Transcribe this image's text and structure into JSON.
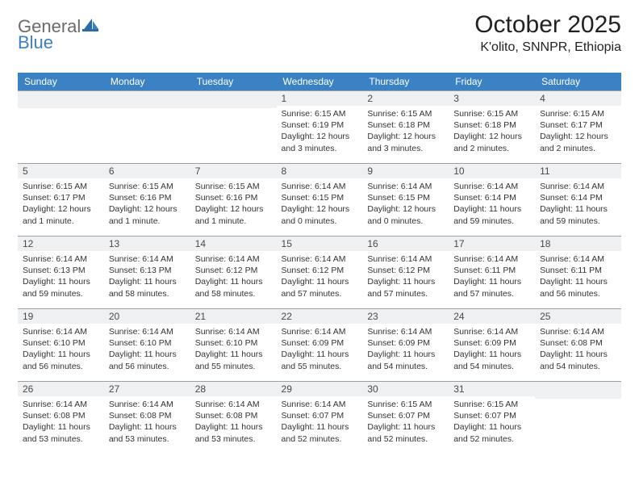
{
  "logo": {
    "part1": "General",
    "part2": "Blue"
  },
  "title": "October 2025",
  "location": "K'olito, SNNPR, Ethiopia",
  "colors": {
    "header_bg": "#3b82c4",
    "header_fg": "#ffffff",
    "daynum_bg": "#eef0f2",
    "daynum_border": "#9aa0a6",
    "logo_gray": "#6b6b6b",
    "logo_blue": "#3b7fc4",
    "body_text": "#333333"
  },
  "typography": {
    "title_fontsize": 30,
    "location_fontsize": 16,
    "weekday_fontsize": 12,
    "daynum_fontsize": 12,
    "body_fontsize": 10.5
  },
  "weekdays": [
    "Sunday",
    "Monday",
    "Tuesday",
    "Wednesday",
    "Thursday",
    "Friday",
    "Saturday"
  ],
  "weeks": [
    [
      {
        "blank": true
      },
      {
        "blank": true
      },
      {
        "blank": true
      },
      {
        "day": "1",
        "sunrise": "Sunrise: 6:15 AM",
        "sunset": "Sunset: 6:19 PM",
        "daylight": "Daylight: 12 hours and 3 minutes."
      },
      {
        "day": "2",
        "sunrise": "Sunrise: 6:15 AM",
        "sunset": "Sunset: 6:18 PM",
        "daylight": "Daylight: 12 hours and 3 minutes."
      },
      {
        "day": "3",
        "sunrise": "Sunrise: 6:15 AM",
        "sunset": "Sunset: 6:18 PM",
        "daylight": "Daylight: 12 hours and 2 minutes."
      },
      {
        "day": "4",
        "sunrise": "Sunrise: 6:15 AM",
        "sunset": "Sunset: 6:17 PM",
        "daylight": "Daylight: 12 hours and 2 minutes."
      }
    ],
    [
      {
        "day": "5",
        "sunrise": "Sunrise: 6:15 AM",
        "sunset": "Sunset: 6:17 PM",
        "daylight": "Daylight: 12 hours and 1 minute."
      },
      {
        "day": "6",
        "sunrise": "Sunrise: 6:15 AM",
        "sunset": "Sunset: 6:16 PM",
        "daylight": "Daylight: 12 hours and 1 minute."
      },
      {
        "day": "7",
        "sunrise": "Sunrise: 6:15 AM",
        "sunset": "Sunset: 6:16 PM",
        "daylight": "Daylight: 12 hours and 1 minute."
      },
      {
        "day": "8",
        "sunrise": "Sunrise: 6:14 AM",
        "sunset": "Sunset: 6:15 PM",
        "daylight": "Daylight: 12 hours and 0 minutes."
      },
      {
        "day": "9",
        "sunrise": "Sunrise: 6:14 AM",
        "sunset": "Sunset: 6:15 PM",
        "daylight": "Daylight: 12 hours and 0 minutes."
      },
      {
        "day": "10",
        "sunrise": "Sunrise: 6:14 AM",
        "sunset": "Sunset: 6:14 PM",
        "daylight": "Daylight: 11 hours and 59 minutes."
      },
      {
        "day": "11",
        "sunrise": "Sunrise: 6:14 AM",
        "sunset": "Sunset: 6:14 PM",
        "daylight": "Daylight: 11 hours and 59 minutes."
      }
    ],
    [
      {
        "day": "12",
        "sunrise": "Sunrise: 6:14 AM",
        "sunset": "Sunset: 6:13 PM",
        "daylight": "Daylight: 11 hours and 59 minutes."
      },
      {
        "day": "13",
        "sunrise": "Sunrise: 6:14 AM",
        "sunset": "Sunset: 6:13 PM",
        "daylight": "Daylight: 11 hours and 58 minutes."
      },
      {
        "day": "14",
        "sunrise": "Sunrise: 6:14 AM",
        "sunset": "Sunset: 6:12 PM",
        "daylight": "Daylight: 11 hours and 58 minutes."
      },
      {
        "day": "15",
        "sunrise": "Sunrise: 6:14 AM",
        "sunset": "Sunset: 6:12 PM",
        "daylight": "Daylight: 11 hours and 57 minutes."
      },
      {
        "day": "16",
        "sunrise": "Sunrise: 6:14 AM",
        "sunset": "Sunset: 6:12 PM",
        "daylight": "Daylight: 11 hours and 57 minutes."
      },
      {
        "day": "17",
        "sunrise": "Sunrise: 6:14 AM",
        "sunset": "Sunset: 6:11 PM",
        "daylight": "Daylight: 11 hours and 57 minutes."
      },
      {
        "day": "18",
        "sunrise": "Sunrise: 6:14 AM",
        "sunset": "Sunset: 6:11 PM",
        "daylight": "Daylight: 11 hours and 56 minutes."
      }
    ],
    [
      {
        "day": "19",
        "sunrise": "Sunrise: 6:14 AM",
        "sunset": "Sunset: 6:10 PM",
        "daylight": "Daylight: 11 hours and 56 minutes."
      },
      {
        "day": "20",
        "sunrise": "Sunrise: 6:14 AM",
        "sunset": "Sunset: 6:10 PM",
        "daylight": "Daylight: 11 hours and 56 minutes."
      },
      {
        "day": "21",
        "sunrise": "Sunrise: 6:14 AM",
        "sunset": "Sunset: 6:10 PM",
        "daylight": "Daylight: 11 hours and 55 minutes."
      },
      {
        "day": "22",
        "sunrise": "Sunrise: 6:14 AM",
        "sunset": "Sunset: 6:09 PM",
        "daylight": "Daylight: 11 hours and 55 minutes."
      },
      {
        "day": "23",
        "sunrise": "Sunrise: 6:14 AM",
        "sunset": "Sunset: 6:09 PM",
        "daylight": "Daylight: 11 hours and 54 minutes."
      },
      {
        "day": "24",
        "sunrise": "Sunrise: 6:14 AM",
        "sunset": "Sunset: 6:09 PM",
        "daylight": "Daylight: 11 hours and 54 minutes."
      },
      {
        "day": "25",
        "sunrise": "Sunrise: 6:14 AM",
        "sunset": "Sunset: 6:08 PM",
        "daylight": "Daylight: 11 hours and 54 minutes."
      }
    ],
    [
      {
        "day": "26",
        "sunrise": "Sunrise: 6:14 AM",
        "sunset": "Sunset: 6:08 PM",
        "daylight": "Daylight: 11 hours and 53 minutes."
      },
      {
        "day": "27",
        "sunrise": "Sunrise: 6:14 AM",
        "sunset": "Sunset: 6:08 PM",
        "daylight": "Daylight: 11 hours and 53 minutes."
      },
      {
        "day": "28",
        "sunrise": "Sunrise: 6:14 AM",
        "sunset": "Sunset: 6:08 PM",
        "daylight": "Daylight: 11 hours and 53 minutes."
      },
      {
        "day": "29",
        "sunrise": "Sunrise: 6:14 AM",
        "sunset": "Sunset: 6:07 PM",
        "daylight": "Daylight: 11 hours and 52 minutes."
      },
      {
        "day": "30",
        "sunrise": "Sunrise: 6:15 AM",
        "sunset": "Sunset: 6:07 PM",
        "daylight": "Daylight: 11 hours and 52 minutes."
      },
      {
        "day": "31",
        "sunrise": "Sunrise: 6:15 AM",
        "sunset": "Sunset: 6:07 PM",
        "daylight": "Daylight: 11 hours and 52 minutes."
      },
      {
        "blank": true
      }
    ]
  ]
}
